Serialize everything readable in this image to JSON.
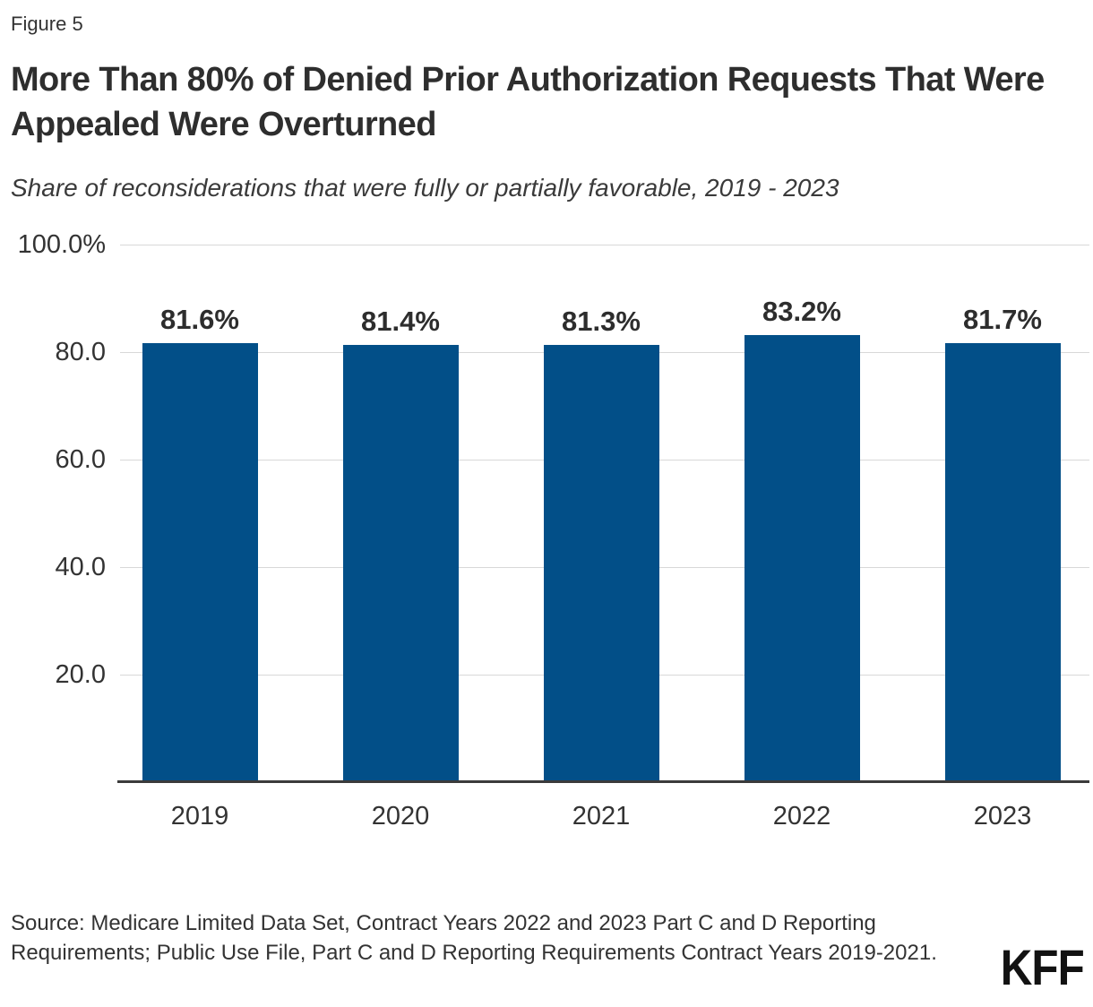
{
  "header": {
    "figure_label": "Figure 5",
    "title": "More Than 80% of Denied Prior Authorization Requests That Were Appealed Were Overturned",
    "subtitle": "Share of reconsiderations that were fully or partially favorable, 2019 - 2023"
  },
  "chart_data": {
    "type": "bar",
    "title": "More Than 80% of Denied Prior Authorization Requests That Were Appealed Were Overturned",
    "subtitle": "Share of reconsiderations that were fully or partially favorable, 2019 - 2023",
    "categories": [
      "2019",
      "2020",
      "2021",
      "2022",
      "2023"
    ],
    "values": [
      81.6,
      81.4,
      81.3,
      83.2,
      81.7
    ],
    "value_labels": [
      "81.6%",
      "81.4%",
      "81.3%",
      "83.2%",
      "81.7%"
    ],
    "xlabel": "",
    "ylabel": "",
    "ylim": [
      0,
      100
    ],
    "yticks": [
      {
        "label": "100.0%",
        "value": 100
      },
      {
        "label": "80.0",
        "value": 80
      },
      {
        "label": "60.0",
        "value": 60
      },
      {
        "label": "40.0",
        "value": 40
      },
      {
        "label": "20.0",
        "value": 20
      }
    ],
    "grid": true,
    "legend": false
  },
  "footer": {
    "source": "Source: Medicare Limited Data Set, Contract Years 2022 and 2023 Part C and D Reporting Requirements; Public Use File, Part C and D Reporting Requirements Contract Years 2019-2021.",
    "logo": "KFF"
  },
  "colors": {
    "bar": "#024F88",
    "gridline": "#D8D8D8",
    "axis": "#3B3B3B",
    "text": "#333333"
  }
}
